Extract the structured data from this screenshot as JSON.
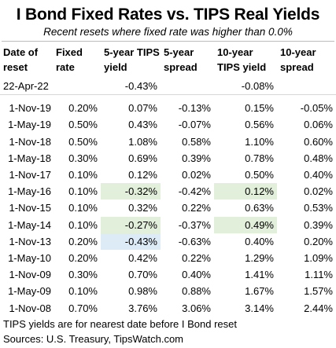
{
  "title": "I Bond Fixed Rates vs. TIPS Real Yields",
  "subtitle": "Recent resets where fixed rate was higher than 0.0%",
  "columns": [
    "Date of reset",
    "Fixed rate",
    "5-year TIPS yield",
    "5-year spread",
    "10-year TIPS yield",
    "10-year spread"
  ],
  "current": {
    "date": "22-Apr-22",
    "tips5": "-0.43%",
    "tips10": "-0.08%"
  },
  "rows": [
    {
      "date": "1-Nov-19",
      "fixed": "0.20%",
      "tips5": "0.07%",
      "spread5": "-0.13%",
      "tips10": "0.15%",
      "spread10": "-0.05%"
    },
    {
      "date": "1-May-19",
      "fixed": "0.50%",
      "tips5": "0.43%",
      "spread5": "-0.07%",
      "tips10": "0.56%",
      "spread10": "0.06%"
    },
    {
      "date": "1-Nov-18",
      "fixed": "0.50%",
      "tips5": "1.08%",
      "spread5": "0.58%",
      "tips10": "1.10%",
      "spread10": "0.60%"
    },
    {
      "date": "1-May-18",
      "fixed": "0.30%",
      "tips5": "0.69%",
      "spread5": "0.39%",
      "tips10": "0.78%",
      "spread10": "0.48%"
    },
    {
      "date": "1-Nov-17",
      "fixed": "0.10%",
      "tips5": "0.12%",
      "spread5": "0.02%",
      "tips10": "0.50%",
      "spread10": "0.40%"
    },
    {
      "date": "1-May-16",
      "fixed": "0.10%",
      "tips5": "-0.32%",
      "spread5": "-0.42%",
      "tips10": "0.12%",
      "spread10": "0.02%"
    },
    {
      "date": "1-Nov-15",
      "fixed": "0.10%",
      "tips5": "0.32%",
      "spread5": "0.22%",
      "tips10": "0.63%",
      "spread10": "0.53%"
    },
    {
      "date": "1-May-14",
      "fixed": "0.10%",
      "tips5": "-0.27%",
      "spread5": "-0.37%",
      "tips10": "0.49%",
      "spread10": "0.39%"
    },
    {
      "date": "1-Nov-13",
      "fixed": "0.20%",
      "tips5": "-0.43%",
      "spread5": "-0.63%",
      "tips10": "0.40%",
      "spread10": "0.20%"
    },
    {
      "date": "1-May-10",
      "fixed": "0.20%",
      "tips5": "0.42%",
      "spread5": "0.22%",
      "tips10": "1.29%",
      "spread10": "1.09%"
    },
    {
      "date": "1-Nov-09",
      "fixed": "0.30%",
      "tips5": "0.70%",
      "spread5": "0.40%",
      "tips10": "1.41%",
      "spread10": "1.11%"
    },
    {
      "date": "1-May-09",
      "fixed": "0.10%",
      "tips5": "0.98%",
      "spread5": "0.88%",
      "tips10": "1.67%",
      "spread10": "1.57%"
    },
    {
      "date": "1-Nov-08",
      "fixed": "0.70%",
      "tips5": "3.76%",
      "spread5": "3.06%",
      "tips10": "3.14%",
      "spread10": "2.44%"
    }
  ],
  "highlights": {
    "green": "#e2efda",
    "blue": "#ddebf7",
    "green_rows_tips5": [
      "1-May-16",
      "1-May-14"
    ],
    "green_rows_tips10": [
      "1-May-16",
      "1-May-14"
    ],
    "blue_rows_tips5": [
      "1-Nov-13"
    ]
  },
  "footer": {
    "note": "TIPS yields are for nearest date before I Bond reset",
    "sources": "Sources: U.S. Treasury, TipsWatch.com"
  }
}
